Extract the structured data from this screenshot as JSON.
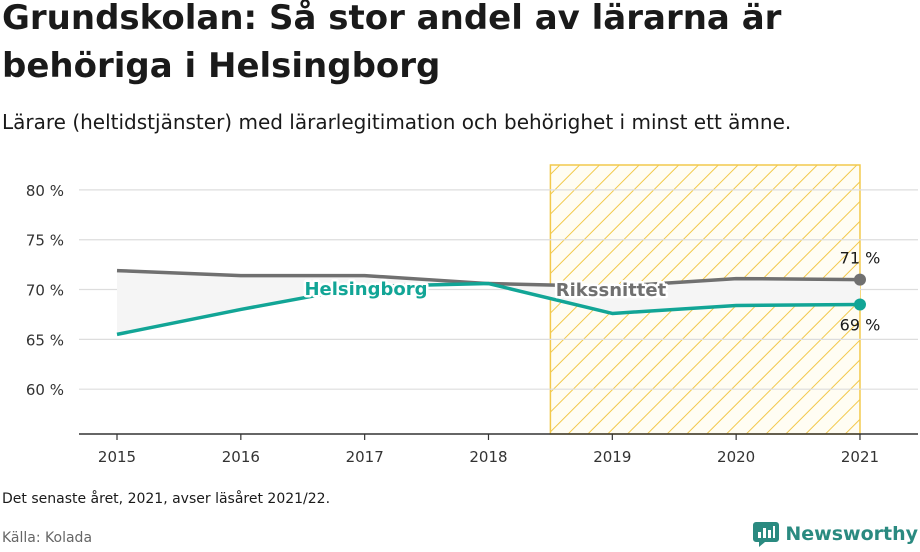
{
  "title": "Grundskolan: Så stor andel av lärarna är behöriga i Helsingborg",
  "subtitle": "Lärare (heltidstjänster) med lärarlegitimation och behörighet i minst ett ämne.",
  "note": "Det senaste året, 2021, avser läsåret 2021/22.",
  "source": "Källa: Kolada",
  "brand": "Newsworthy",
  "colors": {
    "helsingborg": "#12a596",
    "riket": "#707070",
    "highlight": "#f2c94c",
    "grid": "#dddddd",
    "band": "#f5f5f5"
  },
  "chart_data": {
    "type": "line",
    "x": [
      2015,
      2016,
      2017,
      2018,
      2019,
      2020,
      2021
    ],
    "series": [
      {
        "name": "Helsingborg",
        "values": [
          65.5,
          68.0,
          70.3,
          70.6,
          67.6,
          68.4,
          68.5
        ],
        "end_label": "69 %"
      },
      {
        "name": "Rikssnittet",
        "values": [
          71.9,
          71.4,
          71.4,
          70.6,
          70.3,
          71.1,
          71.0
        ],
        "end_label": "71 %"
      }
    ],
    "ylim": [
      55.5,
      82.5
    ],
    "yticks": [
      60,
      65,
      70,
      75,
      80
    ],
    "ytick_labels": [
      "60 %",
      "65 %",
      "70 %",
      "75 %",
      "80 %"
    ],
    "xtick_labels": [
      "2015",
      "2016",
      "2017",
      "2018",
      "2019",
      "2020",
      "2021"
    ],
    "highlight_range": [
      2018.5,
      2021
    ],
    "grid": true,
    "xlabel": "",
    "ylabel": ""
  }
}
